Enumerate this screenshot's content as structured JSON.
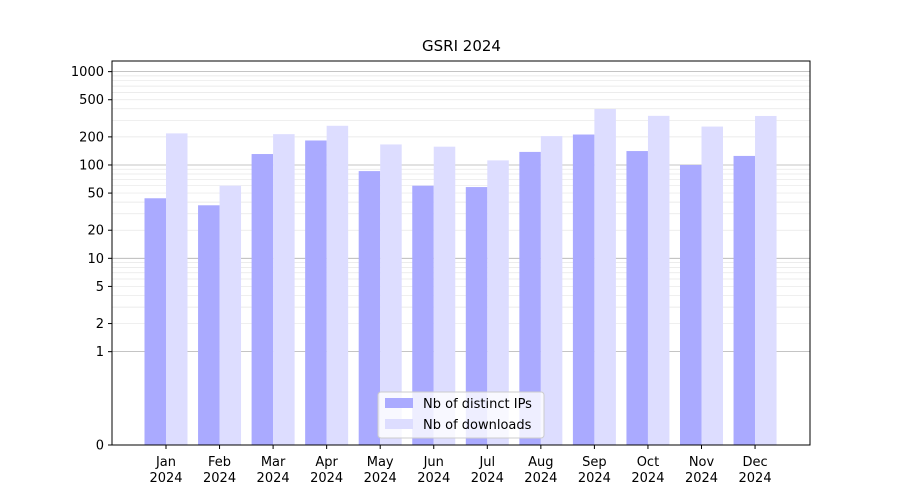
{
  "chart_data": {
    "type": "bar",
    "title": "GSRI 2024",
    "xlabel": "",
    "ylabel": "",
    "yscale": "symlog",
    "ylim": [
      0,
      1300
    ],
    "yticks": [
      0,
      1,
      2,
      5,
      10,
      20,
      50,
      100,
      200,
      500,
      1000
    ],
    "grid": "horizontal",
    "legend_position": "bottom-center",
    "categories": [
      "Jan\n2024",
      "Feb\n2024",
      "Mar\n2024",
      "Apr\n2024",
      "May\n2024",
      "Jun\n2024",
      "Jul\n2024",
      "Aug\n2024",
      "Sep\n2024",
      "Oct\n2024",
      "Nov\n2024",
      "Dec\n2024"
    ],
    "series": [
      {
        "name": "Nb of distinct IPs",
        "color": "#aaaaff",
        "values": [
          44,
          37,
          131,
          183,
          86,
          60,
          58,
          138,
          212,
          141,
          100,
          125
        ]
      },
      {
        "name": "Nb of downloads",
        "color": "#ddddff",
        "values": [
          218,
          60,
          214,
          263,
          166,
          157,
          112,
          204,
          398,
          336,
          258,
          335
        ]
      }
    ]
  }
}
